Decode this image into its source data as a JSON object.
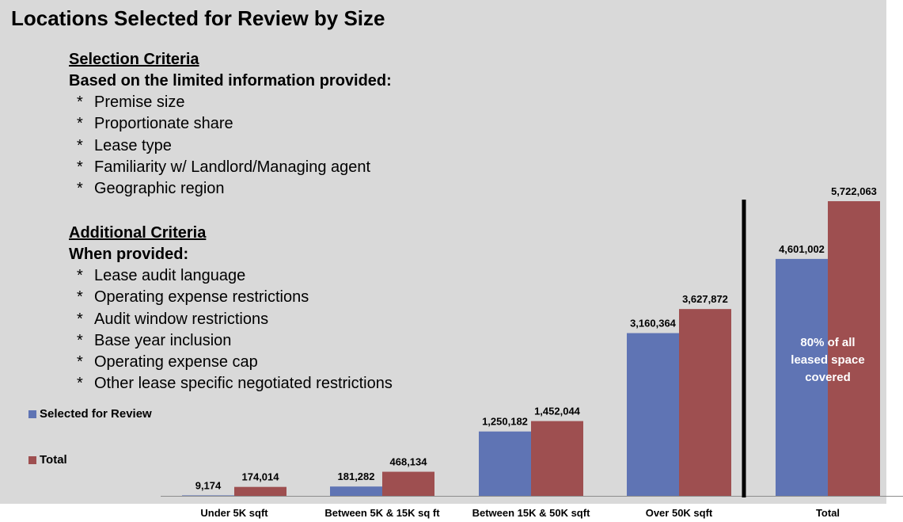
{
  "title": "Locations Selected for Review by Size",
  "selection_criteria": {
    "heading": "Selection Criteria",
    "subheading": "Based on the limited information provided:",
    "items": [
      "Premise size",
      "Proportionate share",
      "Lease type",
      "Familiarity w/ Landlord/Managing agent",
      "Geographic region"
    ]
  },
  "additional_criteria": {
    "heading": "Additional Criteria",
    "subheading": "When provided:",
    "items": [
      "Lease audit language",
      "Operating expense restrictions",
      "Audit window restrictions",
      "Base year inclusion",
      "Operating expense cap",
      "Other lease specific negotiated restrictions"
    ]
  },
  "bullet": "*",
  "annotation": [
    "80% of all",
    "leased space",
    "covered"
  ],
  "colors": {
    "selected": "#5f74b4",
    "total": "#9e4f50",
    "background": "#d9d9d9"
  },
  "chart_data": {
    "type": "bar",
    "categories": [
      "Under 5K sqft",
      "Between 5K & 15K sq ft",
      "Between 15K & 50K sqft",
      "Over 50K sqft",
      "Total"
    ],
    "series": [
      {
        "name": "Selected for Review",
        "values": [
          9174,
          181282,
          1250182,
          3160364,
          4601002
        ],
        "labels": [
          "9,174",
          "181,282",
          "1,250,182",
          "3,160,364",
          "4,601,002"
        ]
      },
      {
        "name": "Total",
        "values": [
          174014,
          468134,
          1452044,
          3627872,
          5722063
        ],
        "labels": [
          "174,014",
          "468,134",
          "1,452,044",
          "3,627,872",
          "5,722,063"
        ]
      }
    ],
    "xlabel": "",
    "ylabel": "",
    "grid": false,
    "legend_position": "left",
    "separator_before_category": "Total"
  }
}
